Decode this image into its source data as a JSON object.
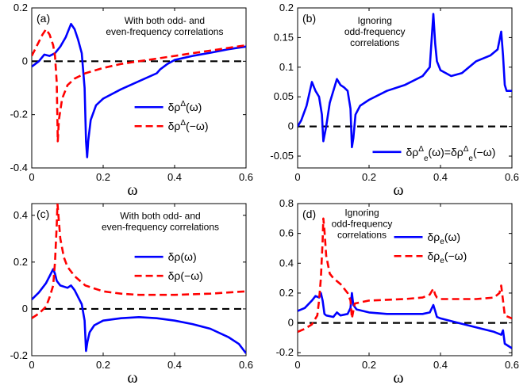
{
  "chart_data": [
    {
      "id": "a",
      "type": "line",
      "panel_label": "(a)",
      "annotation": [
        "With both odd- and",
        "even-frequency correlations"
      ],
      "xlabel": "ω",
      "xlim": [
        0,
        0.6
      ],
      "ylim": [
        -0.4,
        0.2
      ],
      "xticks": [
        "0",
        "0.2",
        "0.4",
        "0.6"
      ],
      "yticks": [
        "0.2",
        "0",
        "-0.2",
        "-0.4"
      ],
      "yticks_values": [
        0.2,
        0,
        -0.2,
        -0.4
      ],
      "xticks_values": [
        0,
        0.2,
        0.4,
        0.6
      ],
      "legend_position": "center-right",
      "series": [
        {
          "name": "δρΔ(ω)",
          "legend_main": "δρ",
          "legend_sup": "Δ",
          "legend_sub": "",
          "legend_tail": "(ω)",
          "color": "#0000ff",
          "dash": "solid",
          "x": [
            0,
            0.02,
            0.035,
            0.05,
            0.065,
            0.08,
            0.095,
            0.11,
            0.12,
            0.13,
            0.14,
            0.148,
            0.152,
            0.155,
            0.158,
            0.165,
            0.18,
            0.2,
            0.25,
            0.3,
            0.35,
            0.36,
            0.38,
            0.4,
            0.45,
            0.5,
            0.55,
            0.6
          ],
          "y": [
            -0.02,
            0.0,
            0.025,
            0.02,
            0.03,
            0.055,
            0.09,
            0.14,
            0.12,
            0.08,
            0.03,
            -0.1,
            -0.3,
            -0.36,
            -0.3,
            -0.22,
            -0.165,
            -0.14,
            -0.105,
            -0.075,
            -0.045,
            -0.03,
            -0.01,
            0.005,
            0.02,
            0.032,
            0.045,
            0.055
          ]
        },
        {
          "name": "δρΔ(-ω)",
          "legend_main": "δρ",
          "legend_sup": "Δ",
          "legend_sub": "",
          "legend_tail": "(−ω)",
          "color": "#ff0000",
          "dash": "dashed",
          "x": [
            0,
            0.015,
            0.03,
            0.04,
            0.05,
            0.06,
            0.065,
            0.07,
            0.073,
            0.076,
            0.085,
            0.1,
            0.12,
            0.15,
            0.2,
            0.25,
            0.3,
            0.35,
            0.4,
            0.45,
            0.5,
            0.55,
            0.6
          ],
          "y": [
            0.02,
            0.06,
            0.1,
            0.12,
            0.1,
            0.06,
            0.02,
            -0.08,
            -0.3,
            -0.22,
            -0.14,
            -0.09,
            -0.065,
            -0.045,
            -0.025,
            -0.01,
            0.0,
            0.01,
            0.02,
            0.03,
            0.04,
            0.05,
            0.06
          ]
        }
      ]
    },
    {
      "id": "b",
      "type": "line",
      "panel_label": "(b)",
      "annotation": [
        "Ignoring",
        "odd-frequency",
        "correlations"
      ],
      "xlabel": "ω",
      "xlim": [
        0,
        0.6
      ],
      "ylim": [
        -0.07,
        0.2
      ],
      "xticks": [
        "0",
        "0.2",
        "0.4",
        "0.6"
      ],
      "yticks": [
        "0.2",
        "0.15",
        "0.1",
        "0.05",
        "0",
        "-0.05"
      ],
      "yticks_values": [
        0.2,
        0.15,
        0.1,
        0.05,
        0,
        -0.05
      ],
      "xticks_values": [
        0,
        0.2,
        0.4,
        0.6
      ],
      "legend_position": "bottom-right",
      "series": [
        {
          "name": "δρeΔ(ω)=δρeΔ(-ω)",
          "legend_main": "δρ",
          "legend_sup": "Δ",
          "legend_sub": "e",
          "legend_tail": "(ω)=δρ",
          "legend_main2": "",
          "legend_sup2": "Δ",
          "legend_sub2": "e",
          "legend_tail2": "(−ω)",
          "color": "#0000ff",
          "dash": "solid",
          "x": [
            0,
            0.01,
            0.025,
            0.04,
            0.05,
            0.06,
            0.068,
            0.072,
            0.08,
            0.09,
            0.1,
            0.11,
            0.12,
            0.13,
            0.14,
            0.148,
            0.152,
            0.156,
            0.162,
            0.175,
            0.2,
            0.25,
            0.3,
            0.35,
            0.37,
            0.38,
            0.385,
            0.39,
            0.4,
            0.43,
            0.46,
            0.5,
            0.54,
            0.56,
            0.57,
            0.575,
            0.58,
            0.585,
            0.6
          ],
          "y": [
            0.0,
            0.01,
            0.035,
            0.075,
            0.06,
            0.05,
            0.02,
            -0.025,
            0.0,
            0.04,
            0.06,
            0.08,
            0.07,
            0.066,
            0.06,
            0.03,
            -0.035,
            -0.02,
            0.02,
            0.035,
            0.045,
            0.06,
            0.07,
            0.085,
            0.1,
            0.19,
            0.14,
            0.11,
            0.095,
            0.085,
            0.09,
            0.11,
            0.12,
            0.13,
            0.16,
            0.12,
            0.07,
            0.06,
            0.06
          ]
        }
      ]
    },
    {
      "id": "c",
      "type": "line",
      "panel_label": "(c)",
      "annotation": [
        "With both odd- and",
        "even-frequency correlations"
      ],
      "xlabel": "ω",
      "xlim": [
        0,
        0.6
      ],
      "ylim": [
        -0.2,
        0.45
      ],
      "xticks": [
        "0",
        "0.2",
        "0.4",
        "0.6"
      ],
      "yticks": [
        "0.4",
        "0.2",
        "0",
        "-0.2"
      ],
      "yticks_values": [
        0.4,
        0.2,
        0,
        -0.2
      ],
      "xticks_values": [
        0,
        0.2,
        0.4,
        0.6
      ],
      "legend_position": "center-right",
      "series": [
        {
          "name": "δρ(ω)",
          "legend_main": "δρ",
          "legend_sup": "",
          "legend_sub": "",
          "legend_tail": "(ω)",
          "color": "#0000ff",
          "dash": "solid",
          "x": [
            0,
            0.02,
            0.04,
            0.05,
            0.06,
            0.065,
            0.07,
            0.08,
            0.1,
            0.11,
            0.12,
            0.13,
            0.14,
            0.148,
            0.152,
            0.156,
            0.162,
            0.175,
            0.2,
            0.25,
            0.3,
            0.35,
            0.4,
            0.45,
            0.5,
            0.55,
            0.58,
            0.6
          ],
          "y": [
            0.04,
            0.07,
            0.11,
            0.14,
            0.17,
            0.15,
            0.12,
            0.1,
            0.09,
            0.1,
            0.08,
            0.05,
            0.02,
            -0.05,
            -0.18,
            -0.14,
            -0.1,
            -0.07,
            -0.05,
            -0.04,
            -0.035,
            -0.04,
            -0.05,
            -0.065,
            -0.085,
            -0.12,
            -0.15,
            -0.19
          ]
        },
        {
          "name": "δρ(-ω)",
          "legend_main": "δρ",
          "legend_sup": "",
          "legend_sub": "",
          "legend_tail": "(−ω)",
          "color": "#ff0000",
          "dash": "dashed",
          "x": [
            0,
            0.02,
            0.04,
            0.05,
            0.06,
            0.065,
            0.07,
            0.072,
            0.08,
            0.09,
            0.1,
            0.12,
            0.15,
            0.2,
            0.25,
            0.3,
            0.4,
            0.5,
            0.55,
            0.6
          ],
          "y": [
            -0.04,
            -0.02,
            0.01,
            0.05,
            0.1,
            0.2,
            0.36,
            0.45,
            0.3,
            0.22,
            0.18,
            0.14,
            0.1,
            0.075,
            0.065,
            0.06,
            0.06,
            0.065,
            0.07,
            0.075
          ]
        }
      ]
    },
    {
      "id": "d",
      "type": "line",
      "panel_label": "(d)",
      "annotation": [
        "Ignoring",
        "odd-frequency",
        "correlations"
      ],
      "xlabel": "ω",
      "xlim": [
        0,
        0.6
      ],
      "ylim": [
        -0.22,
        0.8
      ],
      "xticks": [
        "0",
        "0.2",
        "0.4",
        "0.6"
      ],
      "yticks": [
        "0.8",
        "0.6",
        "0.4",
        "0.2",
        "0",
        "-0.2"
      ],
      "yticks_values": [
        0.8,
        0.6,
        0.4,
        0.2,
        0,
        -0.2
      ],
      "xticks_values": [
        0,
        0.2,
        0.4,
        0.6
      ],
      "legend_position": "top-right",
      "series": [
        {
          "name": "δρe(ω)",
          "legend_main": "δρ",
          "legend_sup": "",
          "legend_sub": "e",
          "legend_tail": "(ω)",
          "color": "#0000ff",
          "dash": "solid",
          "x": [
            0,
            0.02,
            0.04,
            0.05,
            0.06,
            0.065,
            0.07,
            0.075,
            0.08,
            0.1,
            0.11,
            0.12,
            0.14,
            0.148,
            0.152,
            0.156,
            0.165,
            0.2,
            0.25,
            0.3,
            0.35,
            0.37,
            0.38,
            0.385,
            0.39,
            0.4,
            0.45,
            0.5,
            0.55,
            0.57,
            0.575,
            0.58,
            0.6
          ],
          "y": [
            0.08,
            0.1,
            0.15,
            0.18,
            0.17,
            0.2,
            0.15,
            0.06,
            0.05,
            0.04,
            0.07,
            0.05,
            0.06,
            0.1,
            0.2,
            0.12,
            0.09,
            0.07,
            0.06,
            0.06,
            0.06,
            0.07,
            0.12,
            0.08,
            0.04,
            0.03,
            0.0,
            -0.03,
            -0.06,
            -0.08,
            -0.05,
            -0.14,
            -0.17
          ]
        },
        {
          "name": "δρe(-ω)",
          "legend_main": "δρ",
          "legend_sup": "",
          "legend_sub": "e",
          "legend_tail": "(−ω)",
          "color": "#ff0000",
          "dash": "dashed",
          "x": [
            0,
            0.02,
            0.04,
            0.055,
            0.06,
            0.065,
            0.07,
            0.072,
            0.075,
            0.08,
            0.09,
            0.1,
            0.12,
            0.14,
            0.148,
            0.152,
            0.16,
            0.2,
            0.3,
            0.35,
            0.37,
            0.38,
            0.385,
            0.39,
            0.4,
            0.45,
            0.5,
            0.55,
            0.565,
            0.57,
            0.575,
            0.58,
            0.6
          ],
          "y": [
            -0.06,
            -0.04,
            -0.01,
            0.05,
            0.15,
            0.3,
            0.55,
            0.7,
            0.62,
            0.45,
            0.33,
            0.3,
            0.26,
            0.2,
            0.15,
            0.03,
            0.13,
            0.15,
            0.16,
            0.17,
            0.19,
            0.23,
            0.19,
            0.17,
            0.16,
            0.16,
            0.16,
            0.17,
            0.2,
            0.25,
            0.15,
            0.05,
            0.03
          ]
        }
      ]
    }
  ]
}
